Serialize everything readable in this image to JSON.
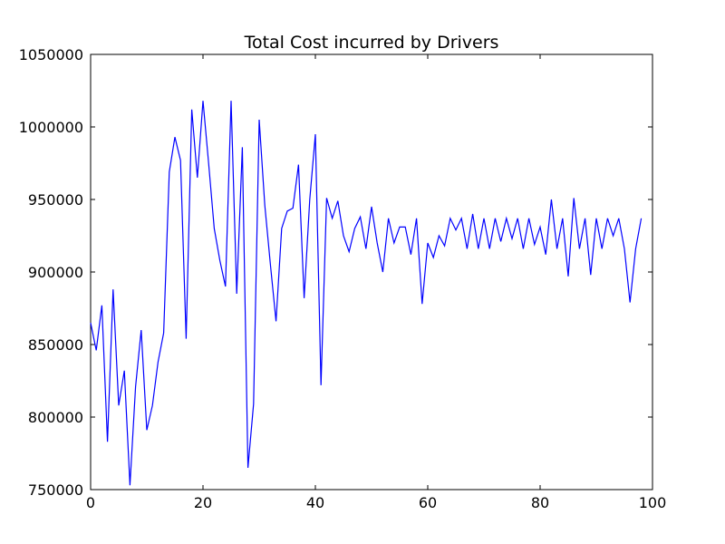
{
  "chart_data": {
    "type": "line",
    "title": "Total Cost incurred by Drivers",
    "xlabel": "",
    "ylabel": "",
    "xlim": [
      0,
      100
    ],
    "ylim": [
      750000,
      1050000
    ],
    "xticks": [
      0,
      20,
      40,
      60,
      80,
      100
    ],
    "yticks": [
      750000,
      800000,
      850000,
      900000,
      950000,
      1000000,
      1050000
    ],
    "grid": false,
    "line_color": "#0000ff",
    "series": [
      {
        "values": [
          [
            0,
            865000
          ],
          [
            1,
            846000
          ],
          [
            2,
            877000
          ],
          [
            3,
            783000
          ],
          [
            4,
            888000
          ],
          [
            5,
            808000
          ],
          [
            6,
            832000
          ],
          [
            7,
            753000
          ],
          [
            8,
            821000
          ],
          [
            9,
            860000
          ],
          [
            10,
            791000
          ],
          [
            11,
            808000
          ],
          [
            12,
            838000
          ],
          [
            13,
            858000
          ],
          [
            14,
            969000
          ],
          [
            15,
            993000
          ],
          [
            16,
            977000
          ],
          [
            17,
            854000
          ],
          [
            18,
            1012000
          ],
          [
            19,
            965000
          ],
          [
            20,
            1018000
          ],
          [
            21,
            975000
          ],
          [
            22,
            930000
          ],
          [
            23,
            908000
          ],
          [
            24,
            890000
          ],
          [
            25,
            1018000
          ],
          [
            26,
            885000
          ],
          [
            27,
            986000
          ],
          [
            28,
            765000
          ],
          [
            29,
            809000
          ],
          [
            30,
            1005000
          ],
          [
            31,
            946000
          ],
          [
            32,
            905000
          ],
          [
            33,
            866000
          ],
          [
            34,
            930000
          ],
          [
            35,
            942000
          ],
          [
            36,
            944000
          ],
          [
            37,
            974000
          ],
          [
            38,
            882000
          ],
          [
            39,
            950000
          ],
          [
            40,
            995000
          ],
          [
            41,
            822000
          ],
          [
            42,
            951000
          ],
          [
            43,
            937000
          ],
          [
            44,
            949000
          ],
          [
            45,
            925000
          ],
          [
            46,
            914000
          ],
          [
            47,
            930000
          ],
          [
            48,
            938000
          ],
          [
            49,
            916000
          ],
          [
            50,
            945000
          ],
          [
            51,
            920000
          ],
          [
            52,
            900000
          ],
          [
            53,
            937000
          ],
          [
            54,
            920000
          ],
          [
            55,
            931000
          ],
          [
            56,
            931000
          ],
          [
            57,
            912000
          ],
          [
            58,
            937000
          ],
          [
            59,
            878000
          ],
          [
            60,
            920000
          ],
          [
            61,
            910000
          ],
          [
            62,
            925000
          ],
          [
            63,
            918000
          ],
          [
            64,
            937000
          ],
          [
            65,
            929000
          ],
          [
            66,
            937000
          ],
          [
            67,
            916000
          ],
          [
            68,
            940000
          ],
          [
            69,
            916000
          ],
          [
            70,
            937000
          ],
          [
            71,
            916000
          ],
          [
            72,
            937000
          ],
          [
            73,
            921000
          ],
          [
            74,
            937000
          ],
          [
            75,
            923000
          ],
          [
            76,
            937000
          ],
          [
            77,
            916000
          ],
          [
            78,
            937000
          ],
          [
            79,
            919000
          ],
          [
            80,
            931000
          ],
          [
            81,
            912000
          ],
          [
            82,
            950000
          ],
          [
            83,
            916000
          ],
          [
            84,
            937000
          ],
          [
            85,
            897000
          ],
          [
            86,
            951000
          ],
          [
            87,
            916000
          ],
          [
            88,
            937000
          ],
          [
            89,
            898000
          ],
          [
            90,
            937000
          ],
          [
            91,
            916000
          ],
          [
            92,
            937000
          ],
          [
            93,
            925000
          ],
          [
            94,
            937000
          ],
          [
            95,
            916000
          ],
          [
            96,
            879000
          ],
          [
            97,
            916000
          ],
          [
            98,
            937000
          ]
        ]
      }
    ]
  }
}
